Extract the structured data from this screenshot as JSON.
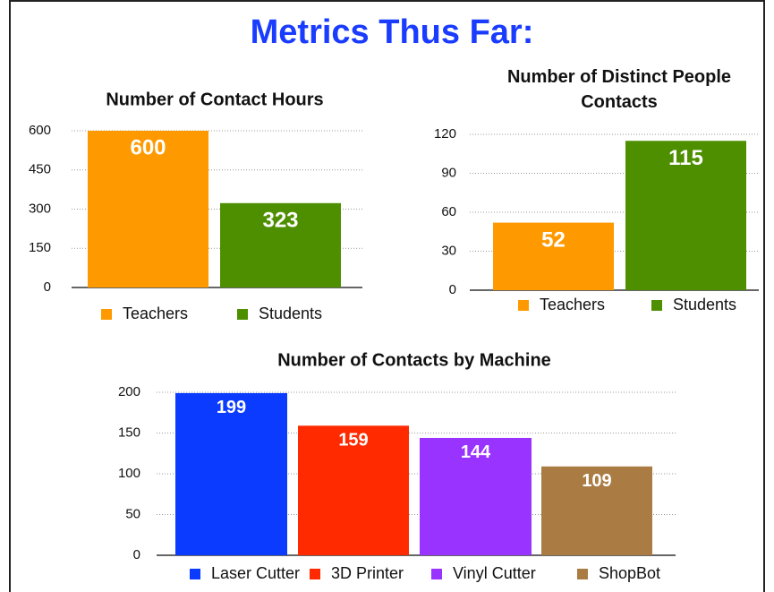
{
  "title": "Metrics Thus Far:",
  "chart_data": [
    {
      "type": "bar",
      "title": "Number of Contact Hours",
      "categories": [
        "Teachers",
        "Students"
      ],
      "values": [
        600,
        323
      ],
      "colors": [
        "#ff9900",
        "#4e8f00"
      ],
      "ylim": [
        0,
        600
      ],
      "yticks": [
        0,
        150,
        300,
        450,
        600
      ],
      "grid": true,
      "legend": "bottom"
    },
    {
      "type": "bar",
      "title": "Number of Distinct People Contacts",
      "categories": [
        "Teachers",
        "Students"
      ],
      "values": [
        52,
        115
      ],
      "colors": [
        "#ff9900",
        "#4e8f00"
      ],
      "ylim": [
        0,
        120
      ],
      "yticks": [
        0,
        30,
        60,
        90,
        120
      ],
      "grid": true,
      "legend": "bottom"
    },
    {
      "type": "bar",
      "title": "Number of Contacts by Machine",
      "categories": [
        "Laser Cutter",
        "3D Printer",
        "Vinyl Cutter",
        "ShopBot"
      ],
      "values": [
        199,
        159,
        144,
        109
      ],
      "colors": [
        "#0b3bff",
        "#ff2a00",
        "#9933ff",
        "#aa7c44"
      ],
      "ylim": [
        0,
        200
      ],
      "yticks": [
        0,
        50,
        100,
        150,
        200
      ],
      "grid": true,
      "legend": "bottom"
    }
  ]
}
